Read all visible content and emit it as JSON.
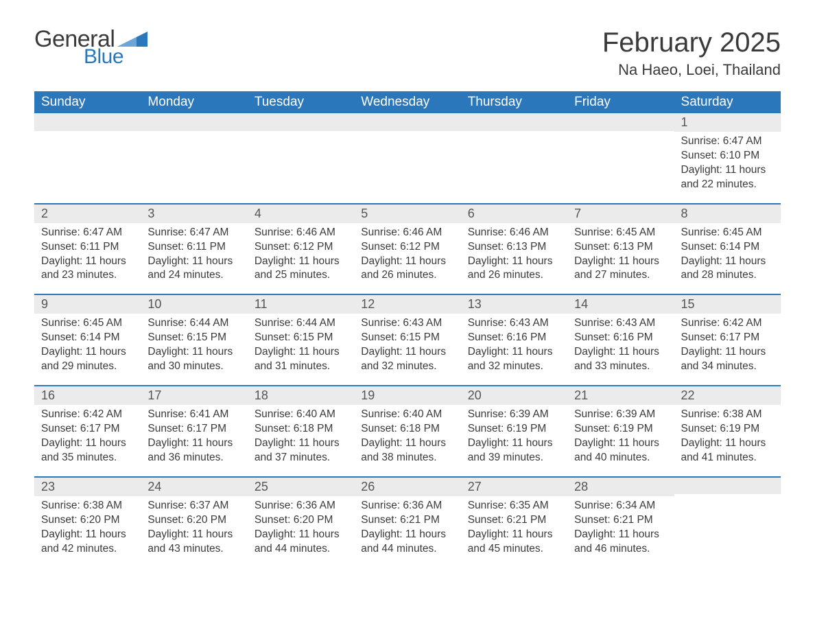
{
  "brand": {
    "word1": "General",
    "word2": "Blue",
    "accent_color": "#2a77bb"
  },
  "title": "February 2025",
  "location": "Na Haeo, Loei, Thailand",
  "day_headers": [
    "Sunday",
    "Monday",
    "Tuesday",
    "Wednesday",
    "Thursday",
    "Friday",
    "Saturday"
  ],
  "colors": {
    "header_bg": "#2a77bb",
    "header_fg": "#ffffff",
    "daynum_bg": "#ebebeb",
    "row_divider": "#2a77bb",
    "text": "#3a3a3a",
    "background": "#ffffff"
  },
  "typography": {
    "month_title_fontsize": 40,
    "location_fontsize": 22,
    "header_fontsize": 19,
    "daynum_fontsize": 18,
    "body_fontsize": 15.5,
    "font_family": "Arial"
  },
  "layout": {
    "columns": 7,
    "rows": 5,
    "first_weekday_index": 6
  },
  "labels": {
    "sunrise": "Sunrise:",
    "sunset": "Sunset:",
    "daylight": "Daylight:"
  },
  "days": [
    {
      "n": 1,
      "sunrise": "6:47 AM",
      "sunset": "6:10 PM",
      "daylight": "11 hours and 22 minutes."
    },
    {
      "n": 2,
      "sunrise": "6:47 AM",
      "sunset": "6:11 PM",
      "daylight": "11 hours and 23 minutes."
    },
    {
      "n": 3,
      "sunrise": "6:47 AM",
      "sunset": "6:11 PM",
      "daylight": "11 hours and 24 minutes."
    },
    {
      "n": 4,
      "sunrise": "6:46 AM",
      "sunset": "6:12 PM",
      "daylight": "11 hours and 25 minutes."
    },
    {
      "n": 5,
      "sunrise": "6:46 AM",
      "sunset": "6:12 PM",
      "daylight": "11 hours and 26 minutes."
    },
    {
      "n": 6,
      "sunrise": "6:46 AM",
      "sunset": "6:13 PM",
      "daylight": "11 hours and 26 minutes."
    },
    {
      "n": 7,
      "sunrise": "6:45 AM",
      "sunset": "6:13 PM",
      "daylight": "11 hours and 27 minutes."
    },
    {
      "n": 8,
      "sunrise": "6:45 AM",
      "sunset": "6:14 PM",
      "daylight": "11 hours and 28 minutes."
    },
    {
      "n": 9,
      "sunrise": "6:45 AM",
      "sunset": "6:14 PM",
      "daylight": "11 hours and 29 minutes."
    },
    {
      "n": 10,
      "sunrise": "6:44 AM",
      "sunset": "6:15 PM",
      "daylight": "11 hours and 30 minutes."
    },
    {
      "n": 11,
      "sunrise": "6:44 AM",
      "sunset": "6:15 PM",
      "daylight": "11 hours and 31 minutes."
    },
    {
      "n": 12,
      "sunrise": "6:43 AM",
      "sunset": "6:15 PM",
      "daylight": "11 hours and 32 minutes."
    },
    {
      "n": 13,
      "sunrise": "6:43 AM",
      "sunset": "6:16 PM",
      "daylight": "11 hours and 32 minutes."
    },
    {
      "n": 14,
      "sunrise": "6:43 AM",
      "sunset": "6:16 PM",
      "daylight": "11 hours and 33 minutes."
    },
    {
      "n": 15,
      "sunrise": "6:42 AM",
      "sunset": "6:17 PM",
      "daylight": "11 hours and 34 minutes."
    },
    {
      "n": 16,
      "sunrise": "6:42 AM",
      "sunset": "6:17 PM",
      "daylight": "11 hours and 35 minutes."
    },
    {
      "n": 17,
      "sunrise": "6:41 AM",
      "sunset": "6:17 PM",
      "daylight": "11 hours and 36 minutes."
    },
    {
      "n": 18,
      "sunrise": "6:40 AM",
      "sunset": "6:18 PM",
      "daylight": "11 hours and 37 minutes."
    },
    {
      "n": 19,
      "sunrise": "6:40 AM",
      "sunset": "6:18 PM",
      "daylight": "11 hours and 38 minutes."
    },
    {
      "n": 20,
      "sunrise": "6:39 AM",
      "sunset": "6:19 PM",
      "daylight": "11 hours and 39 minutes."
    },
    {
      "n": 21,
      "sunrise": "6:39 AM",
      "sunset": "6:19 PM",
      "daylight": "11 hours and 40 minutes."
    },
    {
      "n": 22,
      "sunrise": "6:38 AM",
      "sunset": "6:19 PM",
      "daylight": "11 hours and 41 minutes."
    },
    {
      "n": 23,
      "sunrise": "6:38 AM",
      "sunset": "6:20 PM",
      "daylight": "11 hours and 42 minutes."
    },
    {
      "n": 24,
      "sunrise": "6:37 AM",
      "sunset": "6:20 PM",
      "daylight": "11 hours and 43 minutes."
    },
    {
      "n": 25,
      "sunrise": "6:36 AM",
      "sunset": "6:20 PM",
      "daylight": "11 hours and 44 minutes."
    },
    {
      "n": 26,
      "sunrise": "6:36 AM",
      "sunset": "6:21 PM",
      "daylight": "11 hours and 44 minutes."
    },
    {
      "n": 27,
      "sunrise": "6:35 AM",
      "sunset": "6:21 PM",
      "daylight": "11 hours and 45 minutes."
    },
    {
      "n": 28,
      "sunrise": "6:34 AM",
      "sunset": "6:21 PM",
      "daylight": "11 hours and 46 minutes."
    }
  ]
}
